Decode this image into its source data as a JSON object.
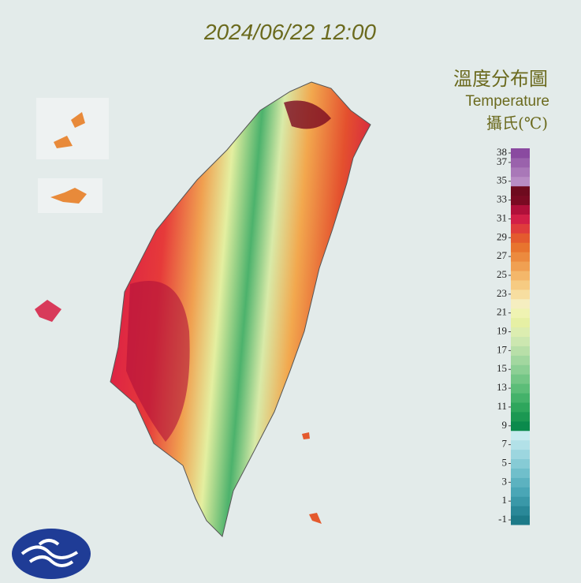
{
  "header": {
    "title": "2024/06/22 12:00"
  },
  "legend": {
    "title": "溫度分布圖",
    "subtitle": "Temperature",
    "unit": "攝氏(℃)",
    "ticks": [
      38,
      37,
      35,
      33,
      31,
      29,
      27,
      25,
      23,
      21,
      19,
      17,
      15,
      13,
      11,
      9,
      7,
      5,
      3,
      1,
      -1
    ],
    "colors": [
      "#1d7a88",
      "#2a8898",
      "#3a98a8",
      "#4aa6b6",
      "#5cb2c0",
      "#70bfcb",
      "#86cbd5",
      "#9cd6df",
      "#b2e1e8",
      "#c6ebef",
      "#0b8a4c",
      "#1b9852",
      "#2ea65c",
      "#44b26a",
      "#5cbd78",
      "#74c686",
      "#8ccf94",
      "#a2d79f",
      "#b8dfa8",
      "#cce7b0",
      "#dcedb0",
      "#e6f0a4",
      "#eff3b2",
      "#f5eec0",
      "#f7dea0",
      "#f6cb82",
      "#f4b76a",
      "#f0a052",
      "#ec8a3e",
      "#e8742e",
      "#e45a2e",
      "#df3c3c",
      "#d21f47",
      "#b0103a",
      "#7a0a22",
      "#6e0a1e",
      "#b88cc4",
      "#a978b8",
      "#9a62ac",
      "#8a4aa0"
    ]
  }
}
